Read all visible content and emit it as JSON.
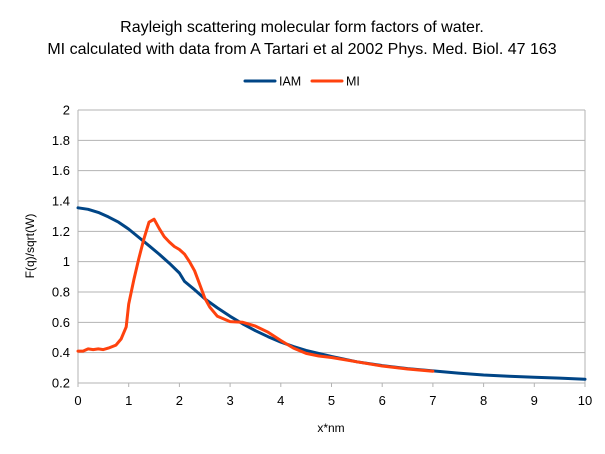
{
  "chart_data": {
    "type": "line",
    "title": "Rayleigh scattering molecular form factors of water.",
    "subtitle": "MI calculated with data from A Tartari et al 2002 Phys. Med. Biol. 47 163",
    "xlabel": "x*nm",
    "ylabel": "F(q)/sqrt(W)",
    "xlim": [
      0,
      10
    ],
    "ylim": [
      0.2,
      2
    ],
    "x_ticks": [
      "0",
      "1",
      "2",
      "3",
      "4",
      "5",
      "6",
      "7",
      "8",
      "9",
      "10"
    ],
    "y_ticks": [
      "0.2",
      "0.4",
      "0.6",
      "0.8",
      "1",
      "1.2",
      "1.4",
      "1.6",
      "1.8",
      "2"
    ],
    "grid": "horizontal",
    "legend_position": "top",
    "series": [
      {
        "name": "IAM",
        "color": "#004586",
        "x": [
          0,
          0.2,
          0.4,
          0.6,
          0.8,
          1.0,
          1.2,
          1.4,
          1.6,
          1.8,
          2.0,
          2.1,
          2.3,
          2.5,
          2.75,
          3.0,
          3.25,
          3.5,
          3.75,
          4.0,
          4.25,
          4.5,
          4.75,
          5.0,
          5.5,
          6.0,
          6.5,
          7.0,
          7.5,
          8.0,
          8.5,
          9.0,
          9.5,
          10.0
        ],
        "y": [
          1.355,
          1.345,
          1.325,
          1.295,
          1.26,
          1.215,
          1.16,
          1.105,
          1.05,
          0.99,
          0.925,
          0.87,
          0.815,
          0.755,
          0.695,
          0.64,
          0.59,
          0.545,
          0.505,
          0.47,
          0.44,
          0.415,
          0.395,
          0.375,
          0.34,
          0.315,
          0.295,
          0.28,
          0.265,
          0.253,
          0.245,
          0.238,
          0.232,
          0.225
        ]
      },
      {
        "name": "MI",
        "color": "#ff420e",
        "x": [
          0,
          0.1,
          0.2,
          0.3,
          0.4,
          0.5,
          0.6,
          0.75,
          0.85,
          0.95,
          1.0,
          1.1,
          1.2,
          1.3,
          1.4,
          1.5,
          1.6,
          1.7,
          1.8,
          1.9,
          2.0,
          2.1,
          2.2,
          2.3,
          2.4,
          2.5,
          2.6,
          2.75,
          3.0,
          3.25,
          3.5,
          3.75,
          4.0,
          4.25,
          4.5,
          4.75,
          5.0,
          5.5,
          6.0,
          6.5,
          7.0
        ],
        "y": [
          0.41,
          0.41,
          0.425,
          0.42,
          0.425,
          0.42,
          0.43,
          0.45,
          0.49,
          0.57,
          0.72,
          0.88,
          1.02,
          1.15,
          1.26,
          1.28,
          1.22,
          1.165,
          1.13,
          1.1,
          1.08,
          1.05,
          1.0,
          0.94,
          0.85,
          0.76,
          0.7,
          0.64,
          0.605,
          0.6,
          0.575,
          0.535,
          0.48,
          0.43,
          0.395,
          0.378,
          0.368,
          0.34,
          0.312,
          0.292,
          0.278
        ]
      }
    ]
  }
}
